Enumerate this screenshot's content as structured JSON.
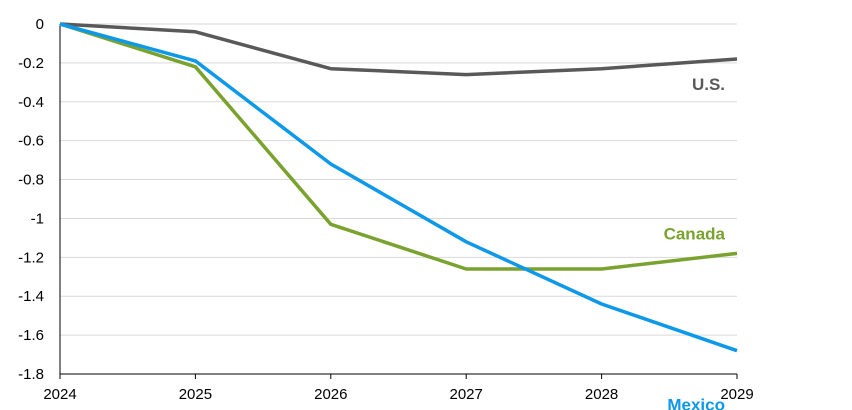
{
  "chart_data": {
    "type": "line",
    "title": "",
    "xlabel": "",
    "ylabel": "",
    "x": [
      "2024",
      "2025",
      "2026",
      "2027",
      "2028",
      "2029"
    ],
    "ylim": [
      -1.8,
      0
    ],
    "yticks": [
      0,
      -0.2,
      -0.4,
      -0.6,
      -0.8,
      -1,
      -1.2,
      -1.4,
      -1.6,
      -1.8
    ],
    "ytick_labels": [
      "0",
      "-0.2",
      "-0.4",
      "-0.6",
      "-0.8",
      "-1",
      "-1.2",
      "-1.4",
      "-1.6",
      "-1.8"
    ],
    "grid": "horizontal",
    "legend": "direct labels at line ends",
    "series": [
      {
        "name": "U.S.",
        "color": "#595959",
        "values": [
          0,
          -0.04,
          -0.23,
          -0.26,
          -0.23,
          -0.18
        ]
      },
      {
        "name": "Canada",
        "color": "#7aa22e",
        "values": [
          0,
          -0.22,
          -1.03,
          -1.26,
          -1.26,
          -1.18
        ]
      },
      {
        "name": "Mexico",
        "color": "#0d98ea",
        "values": [
          0,
          -0.19,
          -0.72,
          -1.12,
          -1.44,
          -1.68
        ]
      }
    ]
  }
}
